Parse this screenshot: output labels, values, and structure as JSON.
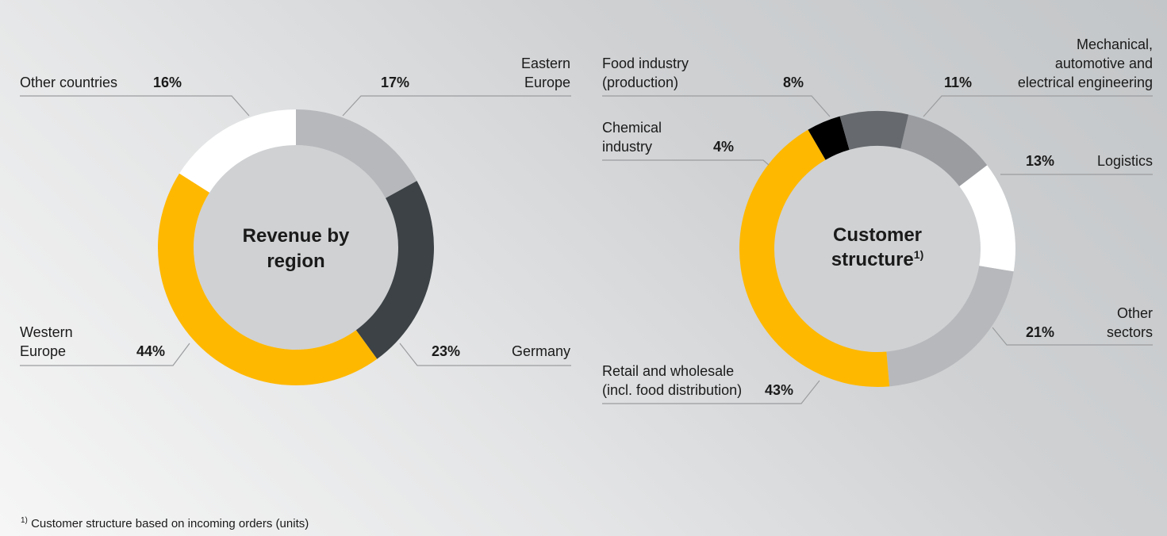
{
  "colors": {
    "yellow": "#ffb800",
    "dark_gray": "#3c4246",
    "mid_gray": "#66696d",
    "light_gray": "#b6b8bb",
    "silver": "#9a9ca0",
    "white": "#ffffff",
    "black": "#000000"
  },
  "chart_data": [
    {
      "type": "pie",
      "title": "Revenue by region",
      "title_lines": [
        "Revenue by",
        "region"
      ],
      "segments": [
        {
          "name": "Eastern Europe",
          "label_lines": [
            "Eastern",
            "Europe"
          ],
          "value": 17,
          "value_label": "17%",
          "color": "#b6b8bb"
        },
        {
          "name": "Germany",
          "label_lines": [
            "Germany"
          ],
          "value": 23,
          "value_label": "23%",
          "color": "#3c4246"
        },
        {
          "name": "Western Europe",
          "label_lines": [
            "Western",
            "Europe"
          ],
          "value": 44,
          "value_label": "44%",
          "color": "#ffb800"
        },
        {
          "name": "Other countries",
          "label_lines": [
            "Other countries"
          ],
          "value": 16,
          "value_label": "16%",
          "color": "#ffffff"
        }
      ]
    },
    {
      "type": "pie",
      "title": "Customer structure",
      "title_lines": [
        "Customer",
        "structure"
      ],
      "title_superscript": "1)",
      "segments": [
        {
          "name": "Mechanical, automotive and electrical engineering",
          "label_lines": [
            "Mechanical,",
            "automotive and",
            "electrical engineering"
          ],
          "value": 11,
          "value_label": "11%",
          "color": "#9a9ca0"
        },
        {
          "name": "Logistics",
          "label_lines": [
            "Logistics"
          ],
          "value": 13,
          "value_label": "13%",
          "color": "#ffffff"
        },
        {
          "name": "Other sectors",
          "label_lines": [
            "Other",
            "sectors"
          ],
          "value": 21,
          "value_label": "21%",
          "color": "#b6b8bb"
        },
        {
          "name": "Retail and wholesale (incl. food distribution)",
          "label_lines": [
            "Retail and wholesale",
            "(incl. food distribution)"
          ],
          "value": 43,
          "value_label": "43%",
          "color": "#ffb800"
        },
        {
          "name": "Chemical industry",
          "label_lines": [
            "Chemical",
            "industry"
          ],
          "value": 4,
          "value_label": "4%",
          "color": "#000000"
        },
        {
          "name": "Food industry (production)",
          "label_lines": [
            "Food industry",
            "(production)"
          ],
          "value": 8,
          "value_label": "8%",
          "color": "#66696d"
        }
      ]
    }
  ],
  "footnote": {
    "marker": "1)",
    "text": "Customer structure based on incoming orders (units)"
  }
}
